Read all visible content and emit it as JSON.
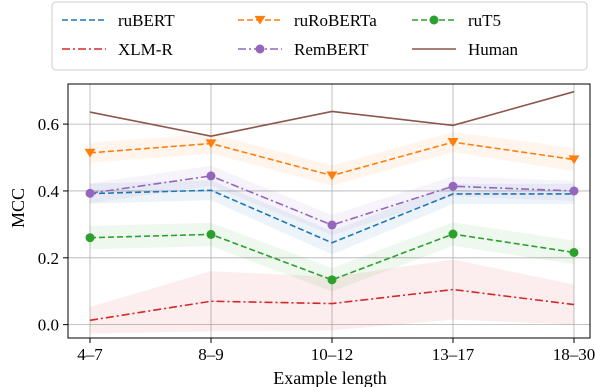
{
  "chart_data": {
    "type": "line",
    "xlabel": "Example length",
    "ylabel": "MCC",
    "categories": [
      "4–7",
      "8–9",
      "10–12",
      "13–17",
      "18–30"
    ],
    "ylim": [
      -0.04,
      0.72
    ],
    "yticks": [
      0.0,
      0.2,
      0.4,
      0.6
    ],
    "ytick_labels": [
      "0.0",
      "0.2",
      "0.4",
      "0.6"
    ],
    "grid": true,
    "legend_placement": "top (above plot), 3 columns",
    "series": [
      {
        "name": "ruBERT",
        "color": "#1f77b4",
        "dash": "dashed",
        "marker": "none",
        "values": [
          0.392,
          0.402,
          0.245,
          0.391,
          0.391
        ],
        "band": [
          0.03,
          0.03,
          0.035,
          0.03,
          0.03
        ]
      },
      {
        "name": "ruRoBERTa",
        "color": "#ff7f0e",
        "dash": "dashed",
        "marker": "triangle-down",
        "values": [
          0.514,
          0.542,
          0.446,
          0.546,
          0.494
        ],
        "band": [
          0.03,
          0.03,
          0.03,
          0.03,
          0.035
        ]
      },
      {
        "name": "ruT5",
        "color": "#2ca02c",
        "dash": "dashed",
        "marker": "circle",
        "values": [
          0.26,
          0.27,
          0.134,
          0.271,
          0.216
        ],
        "band": [
          0.035,
          0.035,
          0.035,
          0.035,
          0.035
        ]
      },
      {
        "name": "XLM-R",
        "color": "#d62728",
        "dash": "dashdot",
        "marker": "none",
        "values": [
          0.013,
          0.07,
          0.063,
          0.105,
          0.06
        ],
        "band": [
          0.04,
          0.09,
          0.08,
          0.09,
          0.06
        ]
      },
      {
        "name": "RemBERT",
        "color": "#9467bd",
        "dash": "dashdot",
        "marker": "circle",
        "values": [
          0.393,
          0.445,
          0.298,
          0.414,
          0.4
        ],
        "band": [
          0.03,
          0.03,
          0.03,
          0.03,
          0.03
        ]
      },
      {
        "name": "Human",
        "color": "#8c564b",
        "dash": "solid",
        "marker": "none",
        "values": [
          0.636,
          0.564,
          0.638,
          0.596,
          0.697
        ],
        "band": null
      }
    ]
  }
}
